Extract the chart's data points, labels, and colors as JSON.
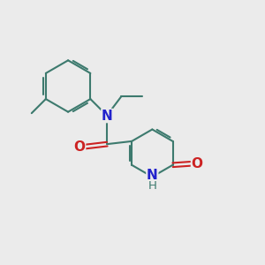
{
  "bg_color": "#ebebeb",
  "bond_color": "#3d7a6e",
  "n_color": "#2222cc",
  "o_color": "#cc2222",
  "figsize": [
    3.0,
    3.0
  ],
  "dpi": 100,
  "xlim": [
    0,
    10
  ],
  "ylim": [
    0,
    10
  ]
}
